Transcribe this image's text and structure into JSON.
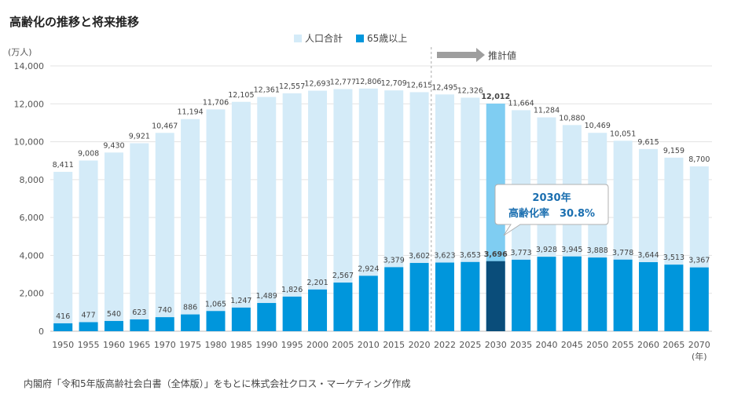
{
  "title": "高齢化の推移と将来推移",
  "source": "内閣府「令和5年版高齢社会白書（全体版）」をもとに株式会社クロス・マーケティング作成",
  "estimate_label": "推計値",
  "callout": {
    "line1": "2030年",
    "line2": "高齢化率　30.8%"
  },
  "colors": {
    "population": "#d4ebf8",
    "elderly": "#0096dc",
    "highlight_population": "#7fcdf2",
    "highlight_elderly": "#0a4d7a",
    "highlight_text": "#1b6fb0",
    "estimate_arrow": "#9e9e9e",
    "divider": "#aaaaaa"
  },
  "chart_data": {
    "type": "bar",
    "yunit": "(万人)",
    "xunit": "(年)",
    "ylim": [
      0,
      14000
    ],
    "yticks": [
      "0",
      "2,000",
      "4,000",
      "6,000",
      "8,000",
      "10,000",
      "12,000",
      "14,000"
    ],
    "ytick_values": [
      0,
      2000,
      4000,
      6000,
      8000,
      10000,
      12000,
      14000
    ],
    "categories": [
      "1950",
      "1955",
      "1960",
      "1965",
      "1970",
      "1975",
      "1980",
      "1985",
      "1990",
      "1995",
      "2000",
      "2005",
      "2010",
      "2015",
      "2020",
      "2022",
      "2025",
      "2030",
      "2035",
      "2040",
      "2045",
      "2050",
      "2055",
      "2060",
      "2065",
      "2070"
    ],
    "series": [
      {
        "name": "人口合計",
        "values": [
          8411,
          9008,
          9430,
          9921,
          10467,
          11194,
          11706,
          12105,
          12361,
          12557,
          12693,
          12777,
          12806,
          12709,
          12615,
          12495,
          12326,
          12012,
          11664,
          11284,
          10880,
          10469,
          10051,
          9615,
          9159,
          8700
        ],
        "labels": [
          "8,411",
          "9,008",
          "9,430",
          "9,921",
          "10,467",
          "11,194",
          "11,706",
          "12,105",
          "12,361",
          "12,557",
          "12,693",
          "12,777",
          "12,806",
          "12,709",
          "12,615",
          "12,495",
          "12,326",
          "12,012",
          "11,664",
          "11,284",
          "10,880",
          "10,469",
          "10,051",
          "9,615",
          "9,159",
          "8,700"
        ]
      },
      {
        "name": "65歳以上",
        "values": [
          416,
          477,
          540,
          623,
          740,
          886,
          1065,
          1247,
          1489,
          1826,
          2201,
          2567,
          2924,
          3379,
          3602,
          3623,
          3653,
          3696,
          3773,
          3928,
          3945,
          3888,
          3778,
          3644,
          3513,
          3367
        ],
        "labels": [
          "416",
          "477",
          "540",
          "623",
          "740",
          "886",
          "1,065",
          "1,247",
          "1,489",
          "1,826",
          "2,201",
          "2,567",
          "2,924",
          "3,379",
          "3,602",
          "3,623",
          "3,653",
          "3,696",
          "3,773",
          "3,928",
          "3,945",
          "3,888",
          "3,778",
          "3,644",
          "3,513",
          "3,367"
        ]
      }
    ],
    "highlight_category": "2030",
    "estimate_from_category": "2022",
    "legend_position": "top-center",
    "grid": true
  }
}
